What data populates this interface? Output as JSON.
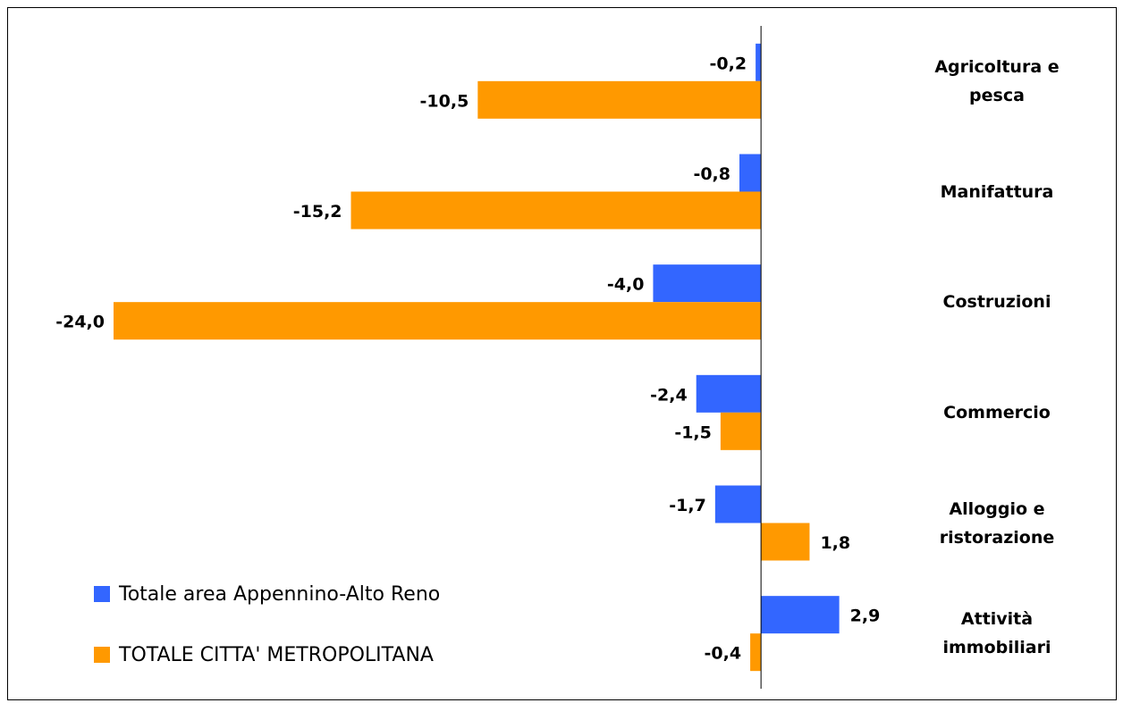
{
  "chart_data": {
    "type": "hbar",
    "categories": [
      "Agricoltura e pesca",
      "Manifattura",
      "Costruzioni",
      "Commercio",
      "Alloggio e ristorazione",
      "Attività immobiliari"
    ],
    "series": [
      {
        "name": "Totale area Appennino-Alto Reno",
        "color": "#3366ff",
        "values": [
          -0.2,
          -0.8,
          -4.0,
          -2.4,
          -1.7,
          2.9
        ],
        "value_labels": [
          "-0,2",
          "-0,8",
          "-4,0",
          "-2,4",
          "-1,7",
          "2,9"
        ]
      },
      {
        "name": "TOTALE CITTA' METROPOLITANA",
        "color": "#ff9900",
        "values": [
          -10.5,
          -15.2,
          -24.0,
          -1.5,
          1.8,
          -0.4
        ],
        "value_labels": [
          "-10,5",
          "-15,2",
          "-24,0",
          "-1,5",
          "1,8",
          "-0,4"
        ]
      }
    ],
    "xlim": [
      -24,
      5
    ]
  }
}
